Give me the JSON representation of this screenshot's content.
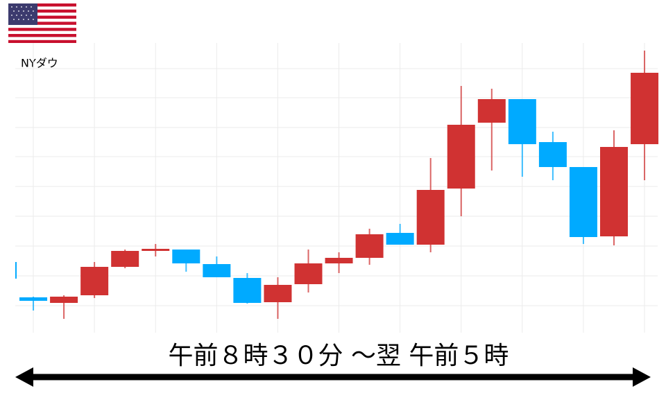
{
  "chart_data": {
    "type": "candlestick",
    "title": "NYダウ",
    "x_label": "午前８時３０分 ～翌 午前５時",
    "x": [
      0,
      1,
      2,
      3,
      4,
      5,
      6,
      7,
      8,
      9,
      10,
      11,
      12,
      13,
      14,
      15,
      16,
      17,
      18,
      19,
      20,
      21
    ],
    "open": [
      102,
      51,
      43,
      54,
      95,
      118,
      120,
      99,
      79,
      44,
      70,
      100,
      108,
      144,
      127,
      208,
      303,
      337,
      275,
      239,
      139,
      272
    ],
    "high": [
      102,
      52,
      54,
      102,
      120,
      128,
      120,
      110,
      86,
      80,
      120,
      116,
      150,
      157,
      252,
      356,
      352,
      337,
      290,
      239,
      292,
      407
    ],
    "low": [
      78,
      32,
      20,
      50,
      93,
      110,
      88,
      80,
      42,
      20,
      58,
      86,
      98,
      127,
      116,
      168,
      234,
      225,
      220,
      128,
      126,
      220
    ],
    "close": [
      78,
      46,
      52,
      95,
      118,
      121,
      100,
      80,
      43,
      69,
      100,
      108,
      142,
      127,
      206,
      300,
      337,
      272,
      239,
      138,
      268,
      375
    ],
    "up_color": "#d03232",
    "down_color": "#00aaff",
    "ylim": [
      0,
      420
    ],
    "grid": true
  }
}
